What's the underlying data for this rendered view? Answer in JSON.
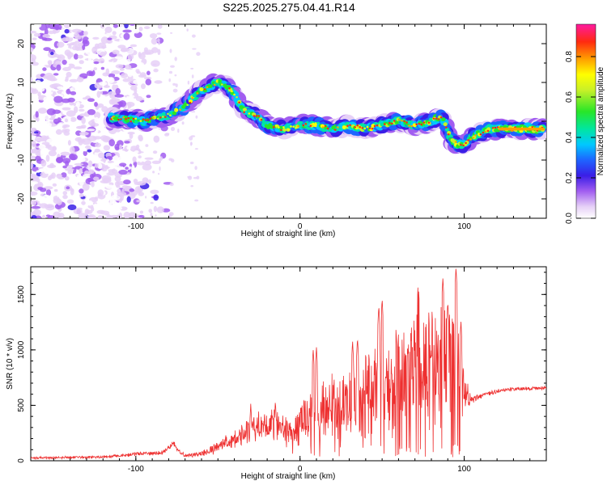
{
  "title": "S225.2025.275.04.41.R14",
  "chart_data": [
    {
      "type": "heatmap",
      "xlabel": "Height of straight line (km)",
      "ylabel": "Frequency (Hz)",
      "xlim": [
        -164,
        150
      ],
      "ylim": [
        -25,
        25
      ],
      "x_ticks": [
        -100,
        0,
        100
      ],
      "y_ticks": [
        -20,
        -10,
        0,
        10,
        20
      ],
      "colorbar": {
        "label": "Normalized spectral amplitude",
        "range": [
          0,
          0.96
        ],
        "ticks": [
          "0.0",
          "0.2",
          "0.4",
          "0.6",
          "0.8"
        ]
      },
      "ridge": {
        "x": [
          -115,
          -105,
          -95,
          -85,
          -78,
          -70,
          -65,
          -60,
          -55,
          -50,
          -45,
          -40,
          -35,
          -30,
          -25,
          -20,
          -10,
          0,
          10,
          20,
          30,
          40,
          50,
          60,
          70,
          80,
          85,
          88,
          92,
          96,
          100,
          105,
          110,
          115,
          120,
          130,
          140,
          148
        ],
        "freq": [
          1,
          0.5,
          0,
          1,
          2,
          4,
          6,
          8,
          9,
          10,
          9,
          7,
          3,
          2,
          1,
          -1,
          -2,
          -1,
          -1,
          -2,
          -1,
          -2,
          -1,
          0,
          -1,
          0,
          1,
          0,
          -5,
          -6,
          -6,
          -4,
          -3,
          -2,
          -2,
          -2,
          -2,
          -2
        ]
      }
    },
    {
      "type": "line",
      "xlabel": "Height of straight line (km)",
      "ylabel": "SNR (10 * v/v)",
      "xlim": [
        -164,
        150
      ],
      "ylim": [
        0,
        1750
      ],
      "x_ticks": [
        -100,
        0,
        100
      ],
      "y_ticks": [
        0,
        500,
        1000,
        1500
      ],
      "series": [
        {
          "name": "SNR",
          "color": "#ee3030",
          "anchors_x": [
            -164,
            -120,
            -100,
            -85,
            -80,
            -77,
            -74,
            -70,
            -60,
            -50,
            -40,
            -30,
            -25,
            -20,
            -15,
            -10,
            -5,
            0,
            5,
            10,
            15,
            20,
            30,
            40,
            50,
            60,
            70,
            80,
            85,
            90,
            95,
            97,
            100,
            105,
            110,
            120,
            130,
            140,
            150
          ],
          "anchors_y": [
            25,
            35,
            60,
            70,
            110,
            160,
            90,
            45,
            60,
            120,
            200,
            280,
            310,
            330,
            330,
            270,
            220,
            380,
            420,
            380,
            470,
            480,
            520,
            580,
            650,
            700,
            760,
            820,
            830,
            830,
            800,
            760,
            620,
            550,
            580,
            630,
            650,
            650,
            660
          ],
          "anchors_amp": [
            12,
            14,
            18,
            20,
            25,
            25,
            20,
            18,
            30,
            60,
            90,
            130,
            150,
            160,
            160,
            160,
            170,
            240,
            240,
            230,
            300,
            320,
            380,
            420,
            450,
            520,
            560,
            600,
            620,
            620,
            600,
            550,
            200,
            40,
            25,
            20,
            18,
            18,
            18
          ],
          "spikes": [
            [
              -78,
              170
            ],
            [
              -30,
              520
            ],
            [
              -15,
              540
            ],
            [
              8,
              1010
            ],
            [
              10,
              1030
            ],
            [
              32,
              1080
            ],
            [
              35,
              1110
            ],
            [
              48,
              1400
            ],
            [
              50,
              1460
            ],
            [
              60,
              1150
            ],
            [
              72,
              1610
            ],
            [
              80,
              1000
            ],
            [
              87,
              1650
            ],
            [
              90,
              1430
            ],
            [
              95,
              1750
            ],
            [
              98,
              1260
            ]
          ]
        }
      ]
    }
  ]
}
